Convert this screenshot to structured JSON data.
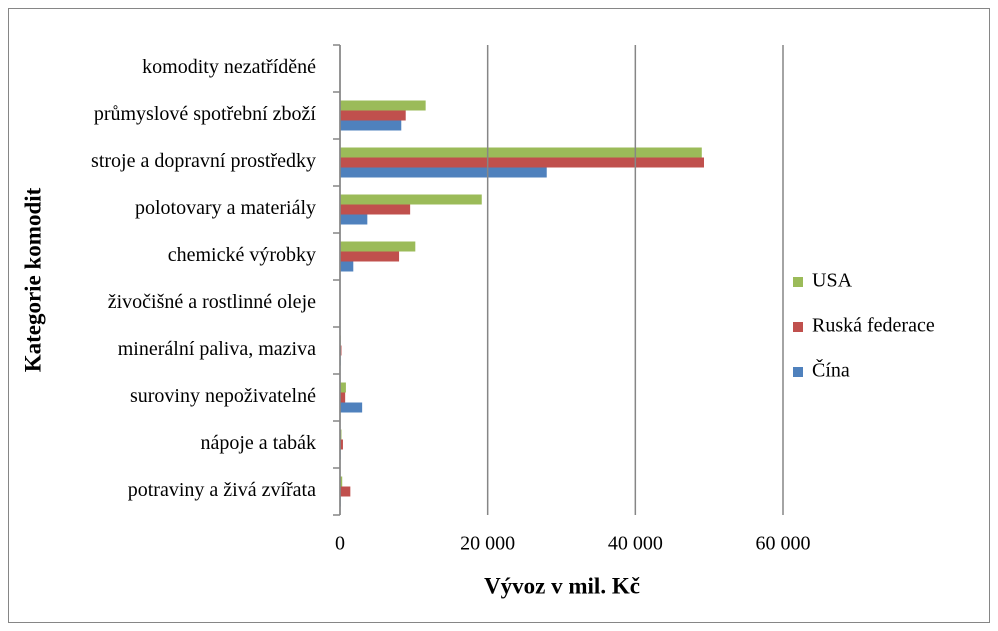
{
  "chart_data": {
    "type": "bar",
    "orientation": "horizontal",
    "x_label": "Vývoz v mil. Kč",
    "y_label": "Kategorie komodit",
    "categories": [
      "potraviny a živá zvířata",
      "nápoje a tabák",
      "suroviny nepoživatelné",
      "minerální paliva, maziva",
      "živočišné a rostlinné oleje",
      "chemické výrobky",
      "polotovary a materiály",
      "stroje a dopravní prostředky",
      "průmyslové spotřební zboží",
      "komodity nezatříděné"
    ],
    "series": [
      {
        "name": "Čína",
        "color": "#4f81bd",
        "values": [
          100,
          100,
          3000,
          100,
          0,
          1800,
          3700,
          28000,
          8300,
          0
        ]
      },
      {
        "name": "Ruská federace",
        "color": "#c0504d",
        "values": [
          1400,
          400,
          700,
          200,
          50,
          8000,
          9500,
          49300,
          8900,
          0
        ]
      },
      {
        "name": "USA",
        "color": "#9bbb59",
        "values": [
          300,
          200,
          800,
          100,
          50,
          10200,
          19200,
          49000,
          11600,
          0
        ]
      }
    ],
    "xlim": [
      0,
      60000
    ],
    "xticks": [
      0,
      {
        "value": 20000,
        "label": "20 000"
      },
      {
        "value": 40000,
        "label": "40 000"
      },
      {
        "value": 60000,
        "label": "60 000"
      }
    ],
    "grid": true,
    "legend": "right"
  }
}
